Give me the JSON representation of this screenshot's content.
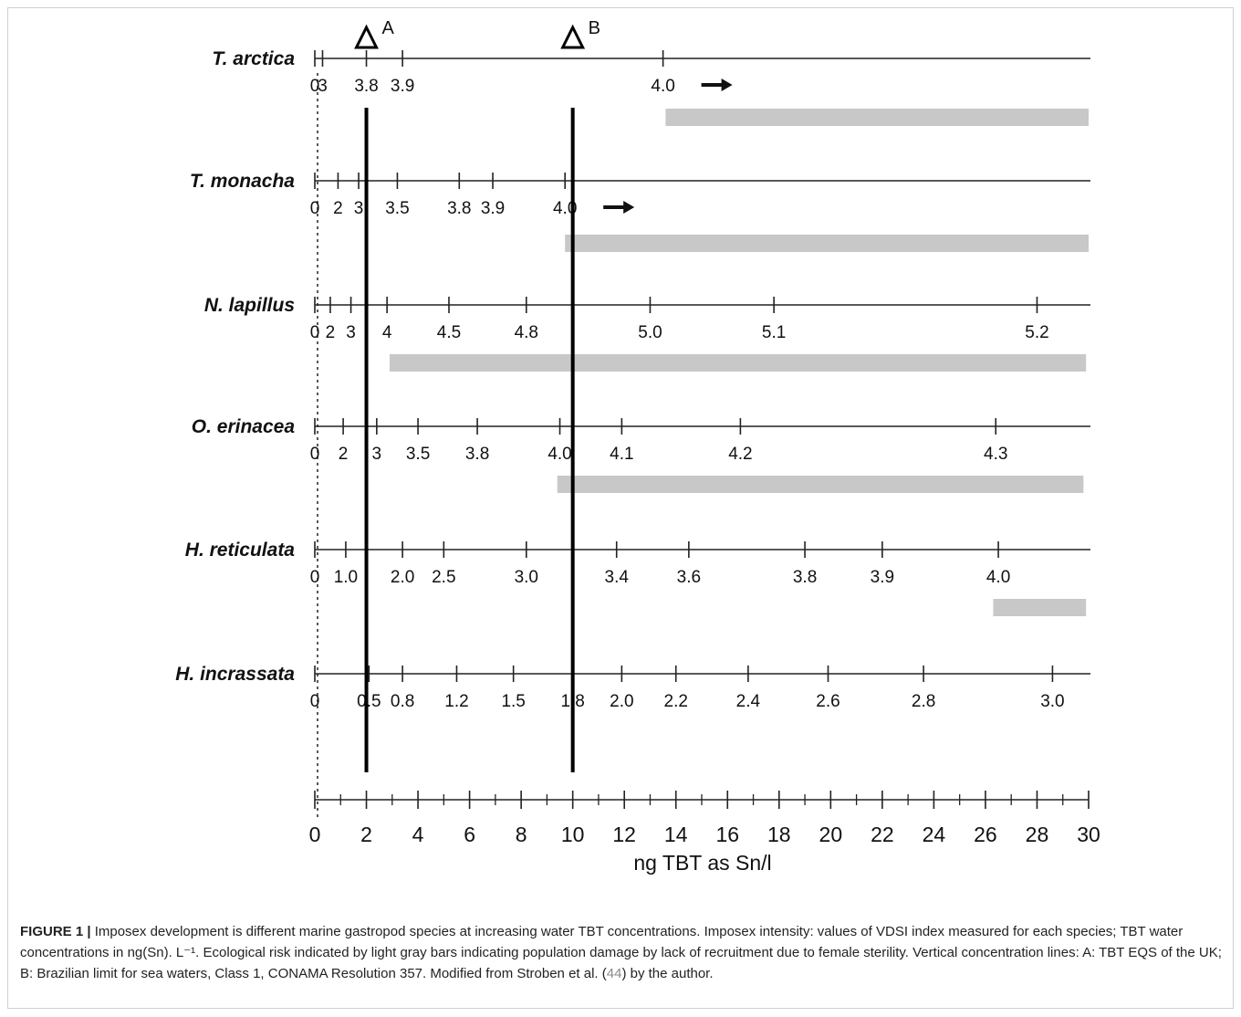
{
  "chart_data": {
    "type": "other",
    "subtype": "species imposex intensity scales vs TBT concentration",
    "x_axis": {
      "label": "ng TBT as Sn/l",
      "range": [
        0,
        30
      ],
      "ticks": [
        "0",
        "2",
        "4",
        "6",
        "8",
        "10",
        "12",
        "14",
        "16",
        "18",
        "20",
        "22",
        "24",
        "26",
        "28",
        "30"
      ]
    },
    "reference_lines": [
      {
        "label": "A",
        "x": 2
      },
      {
        "label": "B",
        "x": 10
      }
    ],
    "species": [
      {
        "name": "T. arctica",
        "ticks": [
          {
            "label": "0",
            "x": 0
          },
          {
            "label": "3",
            "x": 0.3
          },
          {
            "label": "3.8",
            "x": 2.0
          },
          {
            "label": "3.9",
            "x": 3.4
          },
          {
            "label": "4.0",
            "x": 13.5
          }
        ],
        "arrow_after": "4.0",
        "risk_bar": [
          13.6,
          30
        ]
      },
      {
        "name": "T. monacha",
        "ticks": [
          {
            "label": "0",
            "x": 0
          },
          {
            "label": "2",
            "x": 0.9
          },
          {
            "label": "3",
            "x": 1.7
          },
          {
            "label": "3.5",
            "x": 3.2
          },
          {
            "label": "3.8",
            "x": 5.6
          },
          {
            "label": "3.9",
            "x": 6.9
          },
          {
            "label": "4.0",
            "x": 9.7
          }
        ],
        "arrow_after": "4.0",
        "risk_bar": [
          9.7,
          30
        ]
      },
      {
        "name": "N. lapillus",
        "ticks": [
          {
            "label": "0",
            "x": 0
          },
          {
            "label": "2",
            "x": 0.6
          },
          {
            "label": "3",
            "x": 1.4
          },
          {
            "label": "4",
            "x": 2.8
          },
          {
            "label": "4.5",
            "x": 5.2
          },
          {
            "label": "4.8",
            "x": 8.2
          },
          {
            "label": "5.0",
            "x": 13.0
          },
          {
            "label": "5.1",
            "x": 17.8
          },
          {
            "label": "5.2",
            "x": 28.0
          }
        ],
        "risk_bar": [
          2.9,
          29.9
        ]
      },
      {
        "name": "O. erinacea",
        "ticks": [
          {
            "label": "0",
            "x": 0
          },
          {
            "label": "2",
            "x": 1.1
          },
          {
            "label": "3",
            "x": 2.4
          },
          {
            "label": "3.5",
            "x": 4.0
          },
          {
            "label": "3.8",
            "x": 6.3
          },
          {
            "label": "4.0",
            "x": 9.5
          },
          {
            "label": "4.1",
            "x": 11.9
          },
          {
            "label": "4.2",
            "x": 16.5
          },
          {
            "label": "4.3",
            "x": 26.4
          }
        ],
        "risk_bar": [
          9.4,
          29.8
        ]
      },
      {
        "name": "H. reticulata",
        "ticks": [
          {
            "label": "0",
            "x": 0
          },
          {
            "label": "1.0",
            "x": 1.2
          },
          {
            "label": "2.0",
            "x": 3.4
          },
          {
            "label": "2.5",
            "x": 5.0
          },
          {
            "label": "3.0",
            "x": 8.2
          },
          {
            "label": "3.4",
            "x": 11.7
          },
          {
            "label": "3.6",
            "x": 14.5
          },
          {
            "label": "3.8",
            "x": 19.0
          },
          {
            "label": "3.9",
            "x": 22.0
          },
          {
            "label": "4.0",
            "x": 26.5
          }
        ],
        "risk_bar": [
          26.3,
          29.9
        ]
      },
      {
        "name": "H. incrassata",
        "ticks": [
          {
            "label": "0",
            "x": 0
          },
          {
            "label": "0.5",
            "x": 2.1
          },
          {
            "label": "0.8",
            "x": 3.4
          },
          {
            "label": "1.2",
            "x": 5.5
          },
          {
            "label": "1.5",
            "x": 7.7
          },
          {
            "label": "1.8",
            "x": 10.0
          },
          {
            "label": "2.0",
            "x": 11.9
          },
          {
            "label": "2.2",
            "x": 14.0
          },
          {
            "label": "2.4",
            "x": 16.8
          },
          {
            "label": "2.6",
            "x": 19.9
          },
          {
            "label": "2.8",
            "x": 23.6
          },
          {
            "label": "3.0",
            "x": 28.6
          }
        ]
      }
    ]
  },
  "caption": {
    "label": "FIGURE 1 |",
    "text": " Imposex development is different marine gastropod species at increasing water TBT concentrations. Imposex intensity: values of VDSI index measured for each species; TBT water concentrations in ng(Sn). L⁻¹. Ecological risk indicated by light gray bars indicating population damage by lack of recruitment due to female sterility. Vertical concentration lines: A: TBT EQS of the UK; B: Brazilian limit for sea waters, Class 1, CONAMA Resolution 357. Modified from Stroben et al. (",
    "ref": "44",
    "tail": ") by the author."
  }
}
